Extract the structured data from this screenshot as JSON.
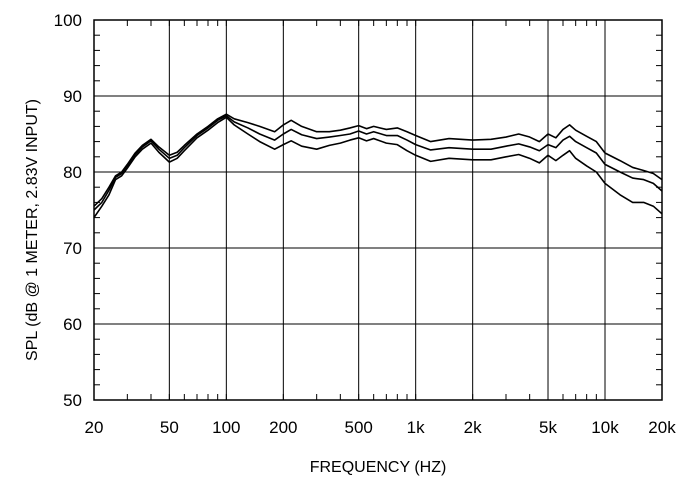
{
  "chart_data": {
    "type": "line",
    "xlabel": "FREQUENCY  (HZ)",
    "ylabel": "SPL (dB @ 1 METER, 2.83V INPUT)",
    "x_scale": "log",
    "xlim": [
      20,
      20000
    ],
    "ylim": [
      50,
      100
    ],
    "x_ticks": [
      {
        "value": 20,
        "label": "20"
      },
      {
        "value": 50,
        "label": "50"
      },
      {
        "value": 100,
        "label": "100"
      },
      {
        "value": 200,
        "label": "200"
      },
      {
        "value": 500,
        "label": "500"
      },
      {
        "value": 1000,
        "label": "1k"
      },
      {
        "value": 2000,
        "label": "2k"
      },
      {
        "value": 5000,
        "label": "5k"
      },
      {
        "value": 10000,
        "label": "10k"
      },
      {
        "value": 20000,
        "label": "20k"
      }
    ],
    "y_ticks": [
      {
        "value": 50,
        "label": "50"
      },
      {
        "value": 60,
        "label": "60"
      },
      {
        "value": 70,
        "label": "70"
      },
      {
        "value": 80,
        "label": "80"
      },
      {
        "value": 90,
        "label": "90"
      },
      {
        "value": 100,
        "label": "100"
      }
    ],
    "grid": true,
    "line_color": "#000000",
    "series": [
      {
        "values": [
          [
            20,
            75.5
          ],
          [
            22,
            76.5
          ],
          [
            24,
            78
          ],
          [
            26,
            79.5
          ],
          [
            28,
            80
          ],
          [
            30,
            81
          ],
          [
            33,
            82.5
          ],
          [
            36,
            83.5
          ],
          [
            40,
            84.3
          ],
          [
            44,
            83.3
          ],
          [
            50,
            82.2
          ],
          [
            55,
            82.6
          ],
          [
            60,
            83.5
          ],
          [
            70,
            85
          ],
          [
            80,
            86
          ],
          [
            90,
            87
          ],
          [
            100,
            87.6
          ],
          [
            110,
            87
          ],
          [
            130,
            86.5
          ],
          [
            150,
            86
          ],
          [
            180,
            85.3
          ],
          [
            200,
            86.2
          ],
          [
            220,
            86.8
          ],
          [
            250,
            86
          ],
          [
            300,
            85.3
          ],
          [
            350,
            85.3
          ],
          [
            400,
            85.5
          ],
          [
            450,
            85.8
          ],
          [
            500,
            86.1
          ],
          [
            550,
            85.7
          ],
          [
            600,
            86
          ],
          [
            700,
            85.6
          ],
          [
            800,
            85.8
          ],
          [
            900,
            85.3
          ],
          [
            1000,
            84.8
          ],
          [
            1200,
            84
          ],
          [
            1500,
            84.4
          ],
          [
            2000,
            84.2
          ],
          [
            2500,
            84.3
          ],
          [
            3000,
            84.6
          ],
          [
            3500,
            85
          ],
          [
            4000,
            84.6
          ],
          [
            4500,
            84
          ],
          [
            5000,
            85
          ],
          [
            5500,
            84.5
          ],
          [
            6000,
            85.6
          ],
          [
            6500,
            86.2
          ],
          [
            7000,
            85.5
          ],
          [
            8000,
            84.7
          ],
          [
            9000,
            84
          ],
          [
            10000,
            82.5
          ],
          [
            12000,
            81.5
          ],
          [
            14000,
            80.6
          ],
          [
            16000,
            80.2
          ],
          [
            18000,
            79.8
          ],
          [
            20000,
            79
          ]
        ]
      },
      {
        "values": [
          [
            20,
            75
          ],
          [
            22,
            76
          ],
          [
            24,
            77.6
          ],
          [
            26,
            79.3
          ],
          [
            28,
            79.8
          ],
          [
            30,
            80.8
          ],
          [
            33,
            82.3
          ],
          [
            36,
            83.3
          ],
          [
            40,
            84.1
          ],
          [
            44,
            83
          ],
          [
            50,
            81.8
          ],
          [
            55,
            82.2
          ],
          [
            60,
            83.2
          ],
          [
            70,
            84.8
          ],
          [
            80,
            85.8
          ],
          [
            90,
            86.8
          ],
          [
            100,
            87.4
          ],
          [
            110,
            86.6
          ],
          [
            130,
            85.8
          ],
          [
            150,
            85
          ],
          [
            180,
            84.2
          ],
          [
            200,
            85
          ],
          [
            220,
            85.6
          ],
          [
            250,
            84.9
          ],
          [
            300,
            84.4
          ],
          [
            350,
            84.6
          ],
          [
            400,
            84.8
          ],
          [
            450,
            85
          ],
          [
            500,
            85.4
          ],
          [
            550,
            85
          ],
          [
            600,
            85.3
          ],
          [
            700,
            84.8
          ],
          [
            800,
            84.8
          ],
          [
            900,
            84.2
          ],
          [
            1000,
            83.6
          ],
          [
            1200,
            82.9
          ],
          [
            1500,
            83.2
          ],
          [
            2000,
            83
          ],
          [
            2500,
            83
          ],
          [
            3000,
            83.4
          ],
          [
            3500,
            83.7
          ],
          [
            4000,
            83.3
          ],
          [
            4500,
            82.8
          ],
          [
            5000,
            83.6
          ],
          [
            5500,
            83.2
          ],
          [
            6000,
            84.2
          ],
          [
            6500,
            84.7
          ],
          [
            7000,
            84
          ],
          [
            8000,
            83.2
          ],
          [
            9000,
            82.5
          ],
          [
            10000,
            81
          ],
          [
            12000,
            80
          ],
          [
            14000,
            79.2
          ],
          [
            16000,
            79
          ],
          [
            18000,
            78.5
          ],
          [
            20000,
            77.5
          ]
        ]
      },
      {
        "values": [
          [
            20,
            74
          ],
          [
            22,
            75.5
          ],
          [
            24,
            77
          ],
          [
            26,
            79
          ],
          [
            28,
            79.5
          ],
          [
            30,
            80.5
          ],
          [
            33,
            82
          ],
          [
            36,
            83
          ],
          [
            40,
            83.8
          ],
          [
            44,
            82.6
          ],
          [
            50,
            81.3
          ],
          [
            55,
            81.8
          ],
          [
            60,
            82.8
          ],
          [
            70,
            84.5
          ],
          [
            80,
            85.5
          ],
          [
            90,
            86.5
          ],
          [
            100,
            87.2
          ],
          [
            110,
            86.2
          ],
          [
            130,
            85
          ],
          [
            150,
            84
          ],
          [
            180,
            83
          ],
          [
            200,
            83.6
          ],
          [
            220,
            84.1
          ],
          [
            250,
            83.4
          ],
          [
            300,
            83
          ],
          [
            350,
            83.5
          ],
          [
            400,
            83.8
          ],
          [
            450,
            84.2
          ],
          [
            500,
            84.5
          ],
          [
            550,
            84.1
          ],
          [
            600,
            84.4
          ],
          [
            700,
            83.8
          ],
          [
            800,
            83.6
          ],
          [
            900,
            82.8
          ],
          [
            1000,
            82.2
          ],
          [
            1200,
            81.4
          ],
          [
            1500,
            81.8
          ],
          [
            2000,
            81.6
          ],
          [
            2500,
            81.6
          ],
          [
            3000,
            82
          ],
          [
            3500,
            82.3
          ],
          [
            4000,
            81.8
          ],
          [
            4500,
            81.2
          ],
          [
            5000,
            82.2
          ],
          [
            5500,
            81.5
          ],
          [
            6000,
            82.2
          ],
          [
            6500,
            82.8
          ],
          [
            7000,
            81.8
          ],
          [
            8000,
            80.8
          ],
          [
            9000,
            80
          ],
          [
            10000,
            78.5
          ],
          [
            12000,
            77
          ],
          [
            14000,
            76
          ],
          [
            16000,
            76
          ],
          [
            18000,
            75.5
          ],
          [
            20000,
            74.5
          ]
        ]
      }
    ]
  }
}
